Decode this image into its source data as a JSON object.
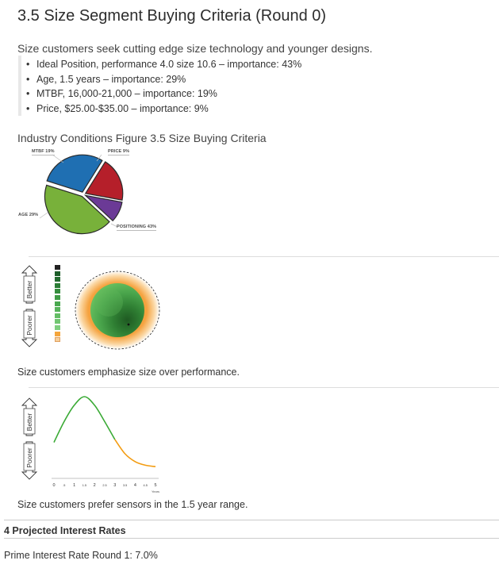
{
  "section": {
    "title": "3.5 Size Segment Buying Criteria (Round 0)",
    "intro": "Size customers seek cutting edge size technology and younger designs.",
    "criteria": [
      "Ideal Position, performance 4.0 size 10.6 – importance: 43%",
      "Age, 1.5 years – importance: 29%",
      "MTBF, 16,000-21,000 – importance: 19%",
      "Price, $25.00-$35.00 – importance: 9%"
    ],
    "figure_caption": "Industry Conditions Figure 3.5 Size Buying Criteria"
  },
  "chart_data": [
    {
      "type": "pie",
      "title": "",
      "slices": [
        {
          "label": "POSITIONING",
          "value": 43,
          "display": "POSITIONING 43%",
          "color": "#78b13a"
        },
        {
          "label": "AGE",
          "value": 29,
          "display": "AGE 29%",
          "color": "#1f6fb2"
        },
        {
          "label": "MTBF",
          "value": 19,
          "display": "MTBF 19%",
          "color": "#b51f2a"
        },
        {
          "label": "PRICE",
          "value": 9,
          "display": "PRICE 9%",
          "color": "#6b3a96"
        }
      ]
    },
    {
      "type": "line",
      "title": "",
      "xlabel": "Years",
      "ylabel": "",
      "x_ticks": [
        "0",
        ".5",
        "1",
        "1.5",
        "2",
        "2.5",
        "3",
        "3.5",
        "4",
        "4.5",
        "5"
      ],
      "xlim": [
        0,
        5
      ],
      "peak_x": 1.5,
      "series": [
        {
          "x": [
            0,
            0.5,
            1,
            1.5,
            2,
            2.5,
            3,
            3.5,
            4,
            4.5,
            5
          ],
          "y": [
            0.36,
            0.65,
            0.88,
            1.0,
            0.88,
            0.65,
            0.4,
            0.2,
            0.09,
            0.04,
            0.02
          ]
        }
      ]
    }
  ],
  "rating": {
    "better": "Better",
    "poorer": "Poorer",
    "scale_colors": [
      "#222222",
      "#1e5e2a",
      "#236b2f",
      "#2b7d36",
      "#358d3e",
      "#3f9b46",
      "#4aa84f",
      "#57b35a",
      "#64bd65",
      "#72c672",
      "#7fce7f",
      "#f4a53c",
      "#f7cf9a"
    ]
  },
  "captions": {
    "position": "Size customers emphasize size over performance.",
    "age": "Size customers prefer sensors in the 1.5 year range."
  },
  "interest": {
    "heading": "4 Projected Interest Rates",
    "prime": "Prime Interest Rate Round 1: 7.0%"
  },
  "colors": {
    "age_curve_high": "#3aaa35",
    "age_curve_low": "#f39c12"
  }
}
